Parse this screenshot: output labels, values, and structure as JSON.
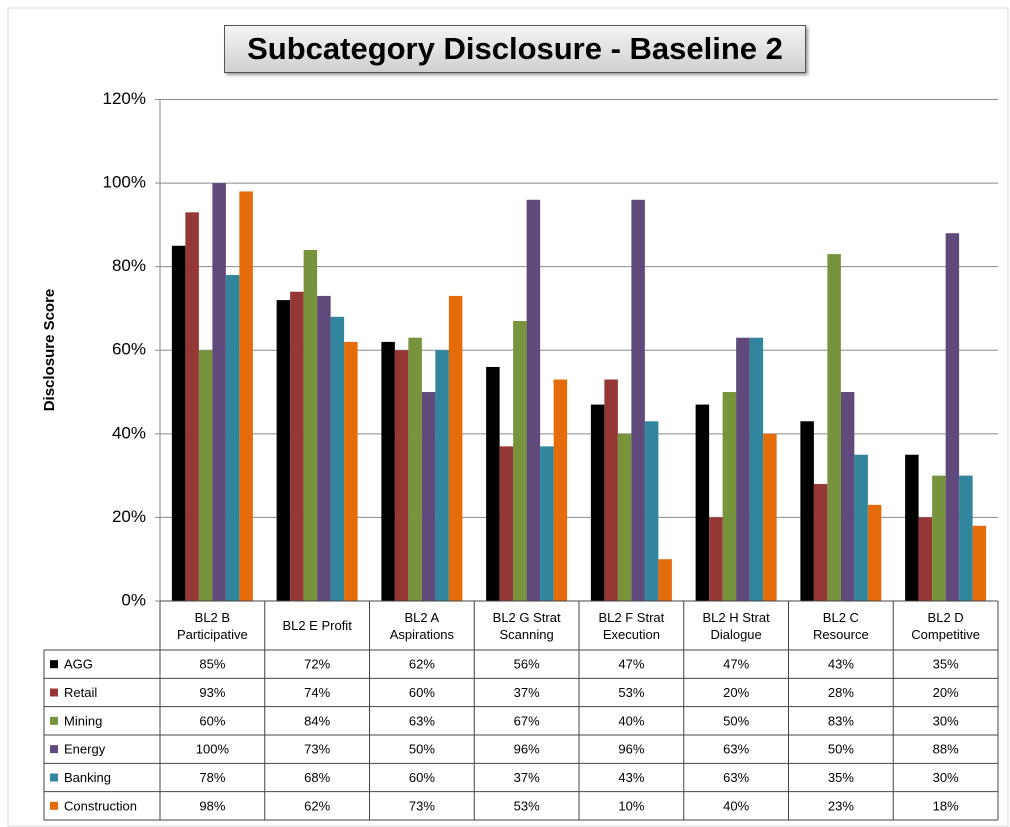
{
  "chart_data": {
    "type": "bar",
    "title": "Subcategory Disclosure - Baseline 2",
    "y_label": "Disclosure Score",
    "categories": [
      "BL2 B Participative",
      "BL2 E Profit",
      "BL2 A Aspirations",
      "BL2 G Strat Scanning",
      "BL2 F Strat Execution",
      "BL2 H Strat Dialogue",
      "BL2 C Resource",
      "BL2 D Competitive"
    ],
    "series": [
      {
        "name": "AGG",
        "color": "#000000",
        "values": [
          85,
          72,
          62,
          56,
          47,
          47,
          43,
          35
        ],
        "value_labels": [
          "85%",
          "72%",
          "62%",
          "56%",
          "47%",
          "47%",
          "43%",
          "35%"
        ]
      },
      {
        "name": "Retail",
        "color": "#953735",
        "values": [
          93,
          74,
          60,
          37,
          53,
          20,
          28,
          20
        ],
        "value_labels": [
          "93%",
          "74%",
          "60%",
          "37%",
          "53%",
          "20%",
          "28%",
          "20%"
        ]
      },
      {
        "name": "Mining",
        "color": "#77933c",
        "values": [
          60,
          84,
          63,
          67,
          40,
          50,
          83,
          30
        ],
        "value_labels": [
          "60%",
          "84%",
          "63%",
          "67%",
          "40%",
          "50%",
          "83%",
          "30%"
        ]
      },
      {
        "name": "Energy",
        "color": "#604a7b",
        "values": [
          100,
          73,
          50,
          96,
          96,
          63,
          50,
          88
        ],
        "value_labels": [
          "100%",
          "73%",
          "50%",
          "96%",
          "96%",
          "63%",
          "50%",
          "88%"
        ]
      },
      {
        "name": "Banking",
        "color": "#31859c",
        "values": [
          78,
          68,
          60,
          37,
          43,
          63,
          35,
          30
        ],
        "value_labels": [
          "78%",
          "68%",
          "60%",
          "37%",
          "43%",
          "63%",
          "35%",
          "30%"
        ]
      },
      {
        "name": "Construction",
        "color": "#e46c0a",
        "values": [
          98,
          62,
          73,
          53,
          10,
          40,
          23,
          18
        ],
        "value_labels": [
          "98%",
          "62%",
          "73%",
          "53%",
          "10%",
          "40%",
          "23%",
          "18%"
        ]
      }
    ],
    "ylim": [
      0,
      120
    ],
    "yticks": [
      {
        "value": 0,
        "label": "0%"
      },
      {
        "value": 20,
        "label": "20%"
      },
      {
        "value": 40,
        "label": "40%"
      },
      {
        "value": 60,
        "label": "60%"
      },
      {
        "value": 80,
        "label": "80%"
      },
      {
        "value": 100,
        "label": "100%"
      },
      {
        "value": 120,
        "label": "120%"
      }
    ],
    "grid": true
  }
}
